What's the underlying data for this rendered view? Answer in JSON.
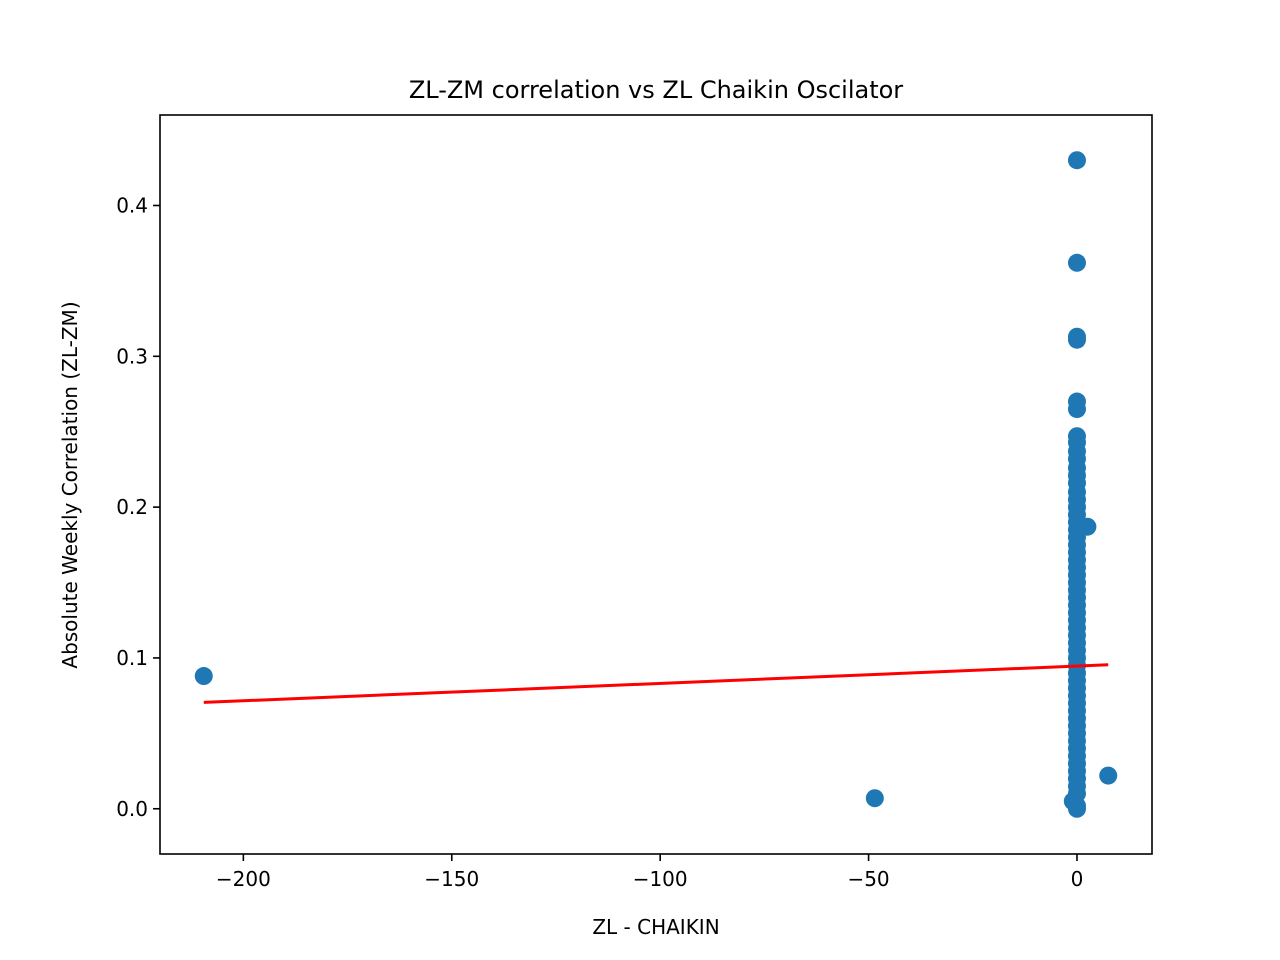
{
  "chart_data": {
    "type": "scatter",
    "title": "ZL-ZM correlation vs ZL Chaikin Oscilator",
    "xlabel": "ZL - CHAIKIN",
    "ylabel": "Absolute Weekly Correlation (ZL-ZM)",
    "xlim": [
      -220,
      18
    ],
    "ylim": [
      -0.03,
      0.46
    ],
    "xticks": [
      -200,
      -150,
      -100,
      -50,
      0
    ],
    "xtick_labels": [
      "−200",
      "−150",
      "−100",
      "−50",
      "0"
    ],
    "yticks": [
      0.0,
      0.1,
      0.2,
      0.3,
      0.4
    ],
    "ytick_labels": [
      "0.0",
      "0.1",
      "0.2",
      "0.3",
      "0.4"
    ],
    "grid": false,
    "series": [
      {
        "kind": "scatter",
        "color": "#1f77b4",
        "points": [
          [
            -209.5,
            0.088
          ],
          [
            -48.5,
            0.007
          ],
          [
            7.5,
            0.022
          ],
          [
            2.5,
            0.187
          ],
          [
            0,
            0.43
          ],
          [
            0,
            0.362
          ],
          [
            0,
            0.313
          ],
          [
            0,
            0.311
          ],
          [
            0,
            0.27
          ],
          [
            0,
            0.265
          ],
          [
            0,
            0.247
          ],
          [
            0,
            0.243
          ],
          [
            0,
            0.237
          ],
          [
            0,
            0.232
          ],
          [
            0,
            0.226
          ],
          [
            0,
            0.221
          ],
          [
            0,
            0.216
          ],
          [
            0,
            0.21
          ],
          [
            0,
            0.205
          ],
          [
            0,
            0.2
          ],
          [
            0,
            0.195
          ],
          [
            0,
            0.19
          ],
          [
            0,
            0.185
          ],
          [
            0,
            0.18
          ],
          [
            0,
            0.175
          ],
          [
            0,
            0.17
          ],
          [
            0,
            0.165
          ],
          [
            0,
            0.16
          ],
          [
            0,
            0.155
          ],
          [
            0,
            0.15
          ],
          [
            0,
            0.145
          ],
          [
            0,
            0.14
          ],
          [
            0,
            0.135
          ],
          [
            0,
            0.13
          ],
          [
            0,
            0.125
          ],
          [
            0,
            0.12
          ],
          [
            0,
            0.115
          ],
          [
            0,
            0.11
          ],
          [
            0,
            0.105
          ],
          [
            0,
            0.1
          ],
          [
            0,
            0.095
          ],
          [
            0,
            0.09
          ],
          [
            0,
            0.085
          ],
          [
            0,
            0.08
          ],
          [
            0,
            0.075
          ],
          [
            0,
            0.07
          ],
          [
            0,
            0.065
          ],
          [
            0,
            0.06
          ],
          [
            0,
            0.055
          ],
          [
            0,
            0.05
          ],
          [
            0,
            0.045
          ],
          [
            0,
            0.04
          ],
          [
            0,
            0.035
          ],
          [
            0,
            0.03
          ],
          [
            0,
            0.025
          ],
          [
            0,
            0.02
          ],
          [
            0,
            0.015
          ],
          [
            0,
            0.01
          ],
          [
            -1,
            0.005
          ],
          [
            0,
            0.002
          ],
          [
            0,
            0.0
          ]
        ]
      },
      {
        "kind": "line",
        "color": "#ff0000",
        "points": [
          [
            -209.5,
            0.0705
          ],
          [
            7.5,
            0.0955
          ]
        ]
      }
    ]
  }
}
